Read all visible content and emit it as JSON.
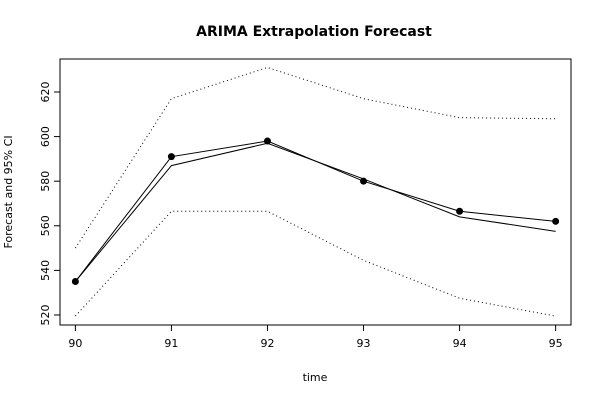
{
  "chart_data": {
    "type": "line",
    "title": "ARIMA Extrapolation Forecast",
    "xlabel": "time",
    "ylabel": "Forecast and 95% CI",
    "x": [
      90,
      91,
      92,
      93,
      94,
      95
    ],
    "x_ticks": [
      "90",
      "91",
      "92",
      "93",
      "94",
      "95"
    ],
    "y_ticks": [
      "520",
      "540",
      "560",
      "580",
      "600",
      "620"
    ],
    "xlim": [
      89.84,
      95.16
    ],
    "ylim": [
      515.5,
      634.8
    ],
    "series": [
      {
        "name": "",
        "role": "observed",
        "style": "line+points",
        "color": "#000000",
        "values": [
          535,
          591,
          598,
          580,
          566.5,
          562
        ]
      },
      {
        "name": "",
        "role": "forecast",
        "style": "line",
        "color": "#000000",
        "values": [
          535,
          587,
          597,
          581,
          564,
          557.5
        ]
      },
      {
        "name": "",
        "role": "upper-95",
        "style": "dotted",
        "color": "#000000",
        "values": [
          550,
          617,
          631,
          617,
          608.5,
          608
        ]
      },
      {
        "name": "",
        "role": "lower-95",
        "style": "dotted",
        "color": "#000000",
        "values": [
          519.5,
          566.5,
          566.5,
          544.5,
          527.5,
          519.5
        ]
      }
    ],
    "grid": false,
    "legend": "none"
  }
}
